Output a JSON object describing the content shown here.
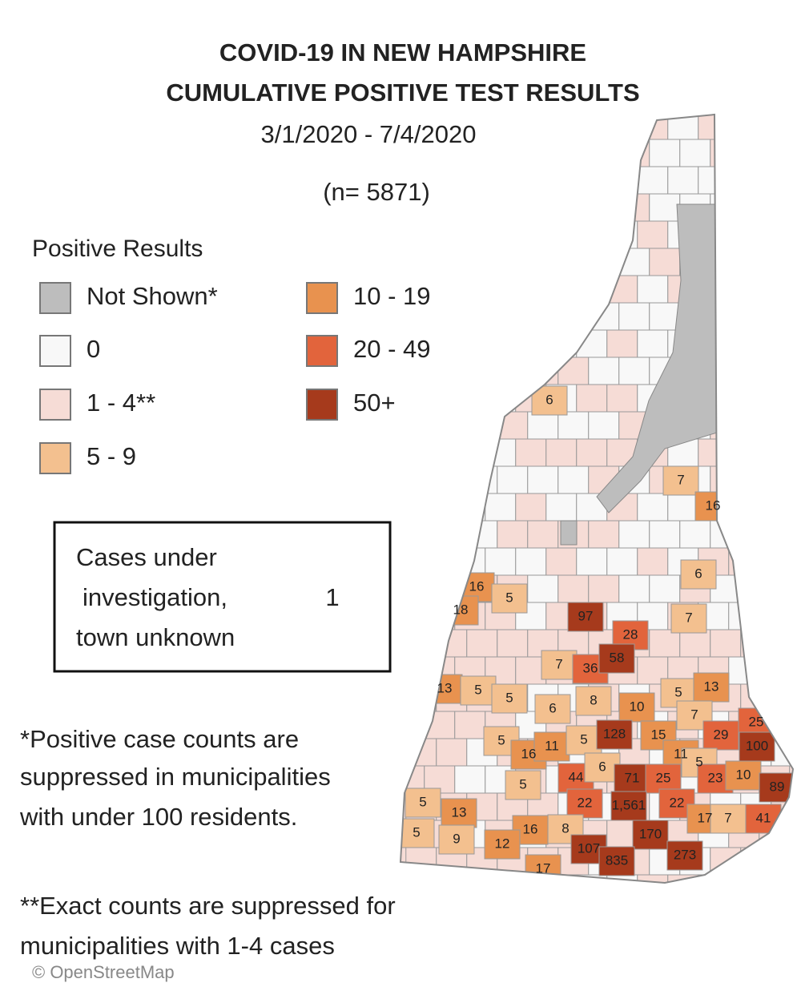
{
  "header": {
    "title_lines": [
      "COVID-19 IN NEW HAMPSHIRE",
      "CUMULATIVE POSITIVE TEST RESULTS"
    ],
    "date_range": "3/1/2020 - 7/4/2020",
    "total": "(n= 5871)"
  },
  "legend": {
    "title": "Positive Results",
    "items": [
      {
        "label": "Not Shown*",
        "color": "#bdbdbd"
      },
      {
        "label": "0",
        "color": "#f8f8f8"
      },
      {
        "label": "1 - 4**",
        "color": "#f6dcd6"
      },
      {
        "label": "5 - 9",
        "color": "#f3c08f"
      },
      {
        "label": "10 - 19",
        "color": "#e8924f"
      },
      {
        "label": "20 - 49",
        "color": "#e2643c"
      },
      {
        "label": "50+",
        "color": "#a63a1c"
      }
    ]
  },
  "unknown_box": {
    "lines": [
      "Cases under",
      "investigation,",
      "town unknown"
    ],
    "value": "1"
  },
  "map_labels": [
    "6",
    "7",
    "16",
    "6",
    "16",
    "5",
    "18",
    "97",
    "28",
    "7",
    "7",
    "36",
    "58",
    "13",
    "5",
    "5",
    "6",
    "8",
    "10",
    "5",
    "13",
    "25",
    "7",
    "29",
    "100",
    "5",
    "16",
    "11",
    "5",
    "128",
    "15",
    "11",
    "5",
    "44",
    "6",
    "71",
    "25",
    "23",
    "10",
    "89",
    "5",
    "22",
    "1,561",
    "22",
    "17",
    "7",
    "41",
    "5",
    "13",
    "5",
    "9",
    "16",
    "8",
    "170",
    "12",
    "107",
    "835",
    "273",
    "17"
  ],
  "footnotes": [
    [
      "*Positive case counts are",
      "suppressed in municipalities",
      "with under 100 residents."
    ],
    [
      "**Exact counts are suppressed for",
      "municipalities with 1-4 cases"
    ]
  ],
  "attribution": "© OpenStreetMap"
}
